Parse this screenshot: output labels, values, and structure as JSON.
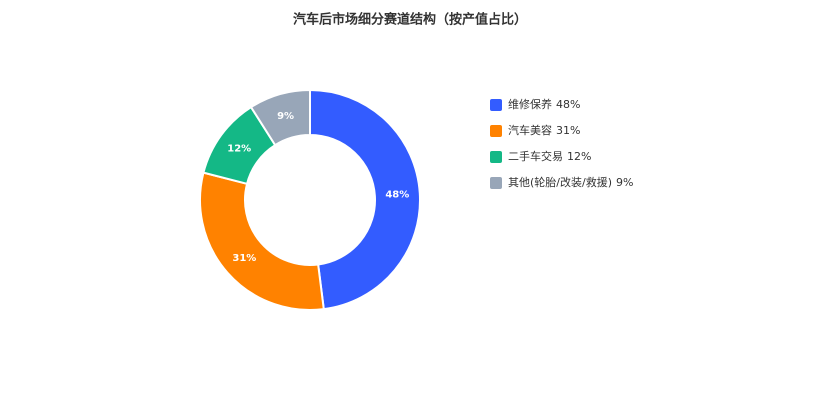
{
  "chart_data": {
    "type": "donut",
    "title": "汽车后市场细分赛道结构（按产值占比）",
    "categories": [
      "维修保养",
      "汽车美容",
      "二手车交易",
      "其他(轮胎/改装/救援)"
    ],
    "values": [
      48,
      31,
      12,
      9
    ],
    "value_labels": [
      "48%",
      "31%",
      "12%",
      "9%"
    ],
    "colors": [
      "#335cff",
      "#ff8200",
      "#14b886",
      "#98a6b8"
    ],
    "legend": "right"
  }
}
